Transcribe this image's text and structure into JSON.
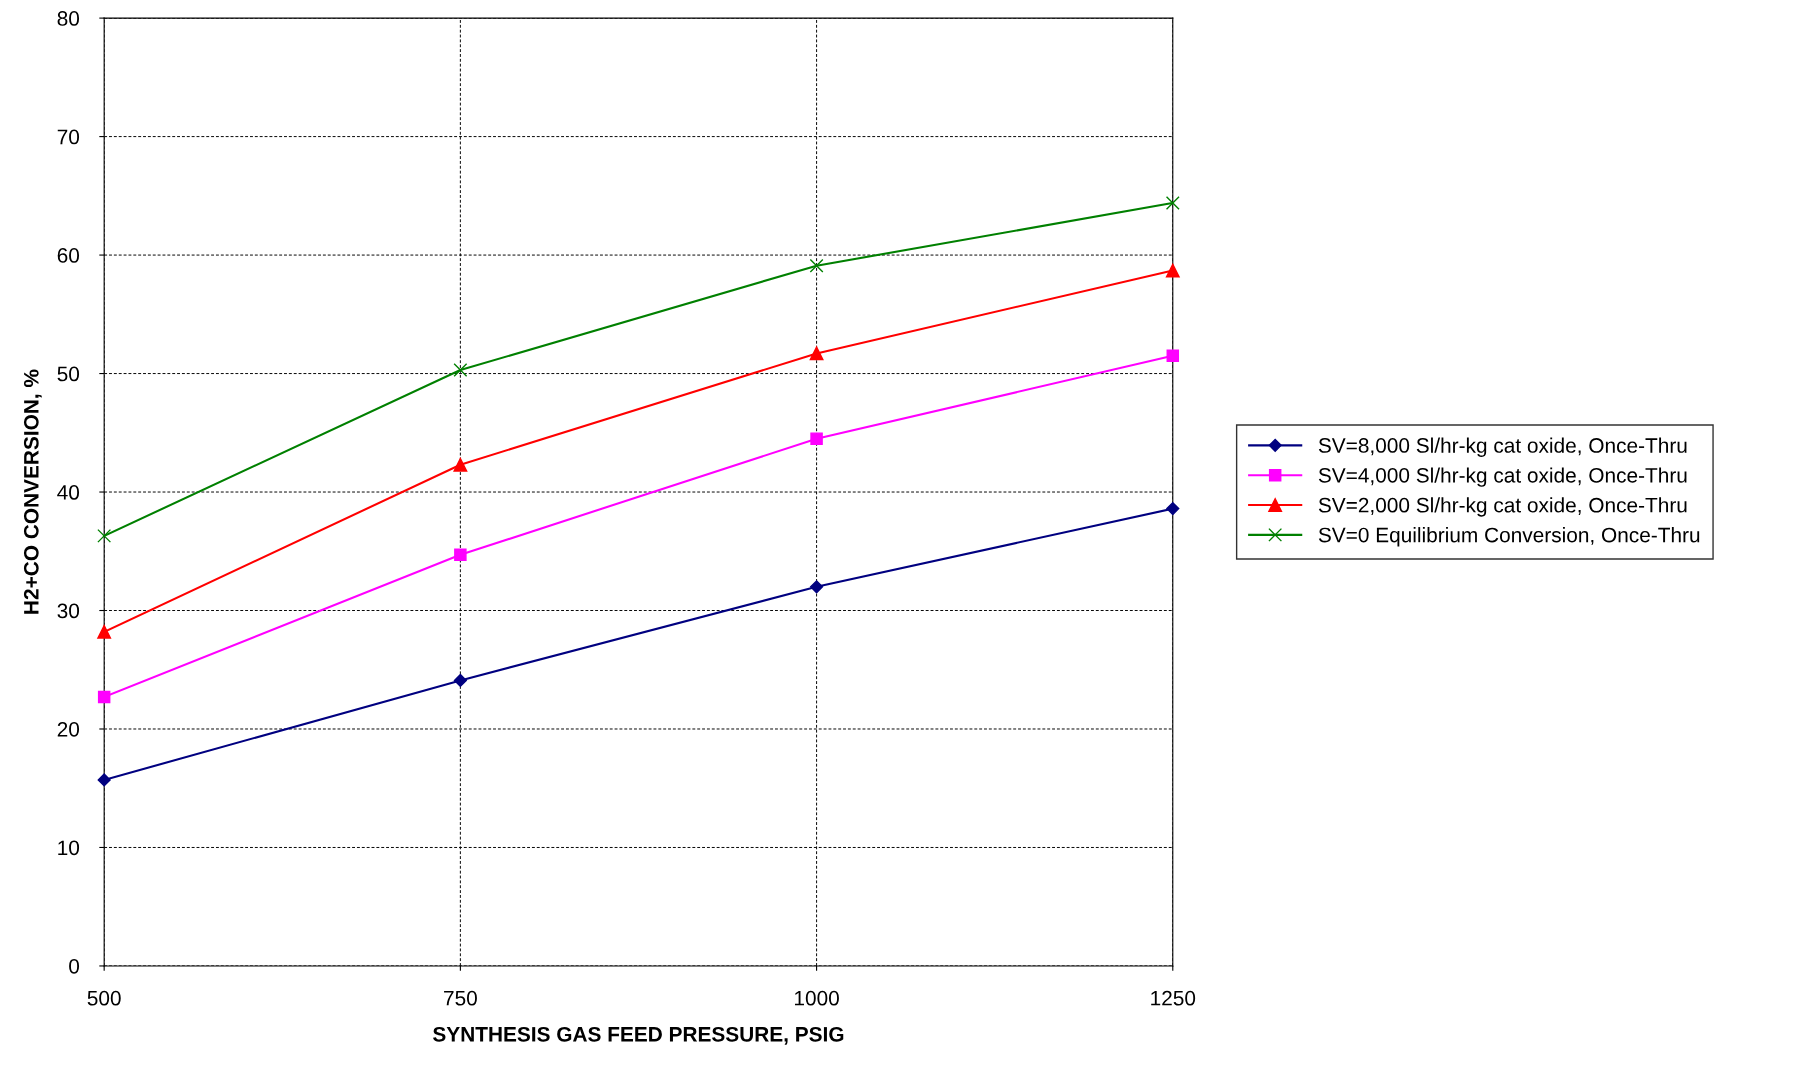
{
  "chart_data": {
    "type": "line",
    "xlabel": "SYNTHESIS GAS FEED PRESSURE, PSIG",
    "ylabel": "H2+CO CONVERSION, %",
    "x": [
      500,
      750,
      1000,
      1250
    ],
    "series": [
      {
        "name": "SV=8,000 Sl/hr-kg cat oxide, Once-Thru",
        "color": "#000080",
        "marker": "diamond",
        "values": [
          15.7,
          24.1,
          32.0,
          38.6
        ]
      },
      {
        "name": "SV=4,000 Sl/hr-kg cat oxide, Once-Thru",
        "color": "#ff00ff",
        "marker": "square",
        "values": [
          22.7,
          34.7,
          44.5,
          51.5
        ]
      },
      {
        "name": "SV=2,000 Sl/hr-kg cat oxide, Once-Thru",
        "color": "#ff0000",
        "marker": "triangle",
        "values": [
          28.2,
          42.3,
          51.7,
          58.7
        ]
      },
      {
        "name": "SV=0 Equilibrium Conversion, Once-Thru",
        "color": "#008000",
        "marker": "cross",
        "values": [
          36.3,
          50.3,
          59.1,
          64.4
        ]
      }
    ],
    "xlim": [
      500,
      1250
    ],
    "xticks": [
      500,
      750,
      1000,
      1250
    ],
    "ylim": [
      0,
      80
    ],
    "yticks": [
      0,
      10,
      20,
      30,
      40,
      50,
      60,
      70,
      80
    ],
    "grid": true,
    "legend": "right",
    "line_style": "solid"
  }
}
